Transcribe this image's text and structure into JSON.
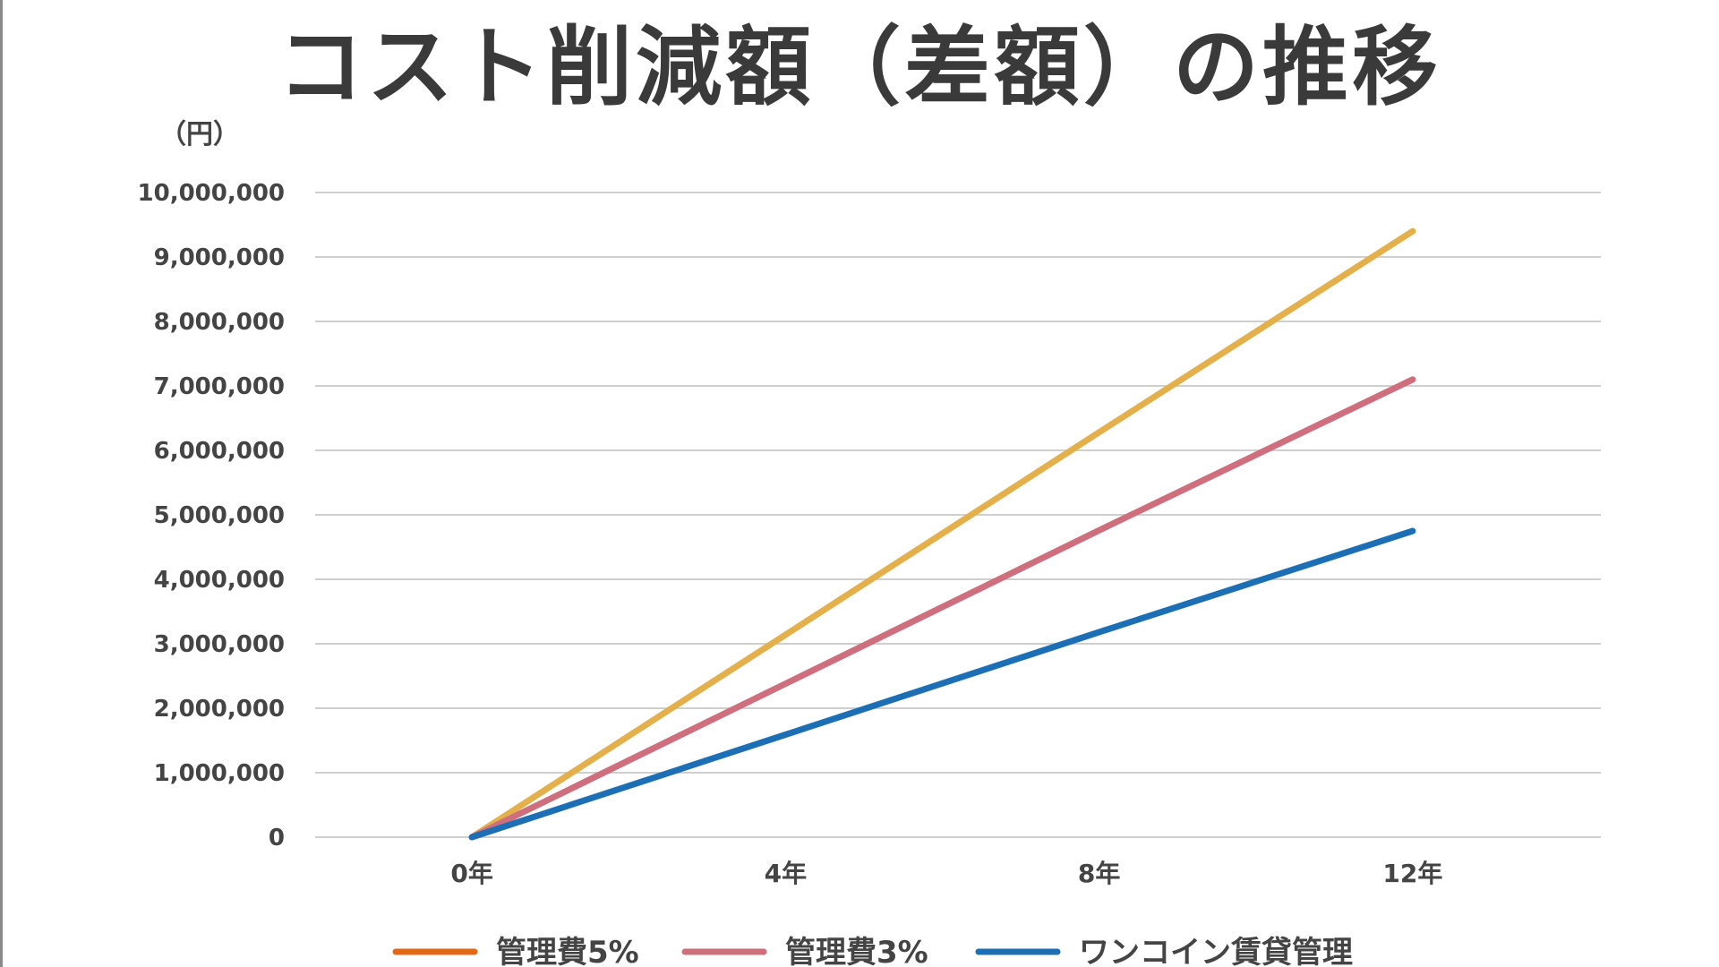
{
  "chart_data": {
    "type": "line",
    "title": "コスト削減額（差額）の推移",
    "ylabel": "（円）",
    "xlabel": "",
    "categories": [
      "0年",
      "4年",
      "8年",
      "12年"
    ],
    "x": [
      0,
      4,
      8,
      12
    ],
    "ylim": [
      0,
      10000000
    ],
    "xlim": [
      -2,
      14.4
    ],
    "y_ticks": [
      0,
      1000000,
      2000000,
      3000000,
      4000000,
      5000000,
      6000000,
      7000000,
      8000000,
      9000000,
      10000000
    ],
    "y_tick_labels": [
      "0",
      "1,000,000",
      "2,000,000",
      "3,000,000",
      "4,000,000",
      "5,000,000",
      "6,000,000",
      "7,000,000",
      "8,000,000",
      "9,000,000",
      "10,000,000"
    ],
    "grid": true,
    "legend_position": "bottom",
    "series": [
      {
        "name": "管理費5%",
        "legend_color": "#e06a1a",
        "line_color": "#e3b04b",
        "values": [
          0,
          3140000,
          6280000,
          9400000
        ]
      },
      {
        "name": "管理費3%",
        "legend_color": "#cf6f7e",
        "line_color": "#cf6f7e",
        "values": [
          0,
          2380000,
          4760000,
          7100000
        ]
      },
      {
        "name": "ワンコイン賃貸管理",
        "legend_color": "#1d6fb5",
        "line_color": "#1d6fb5",
        "values": [
          0,
          1590000,
          3180000,
          4750000
        ]
      }
    ]
  }
}
